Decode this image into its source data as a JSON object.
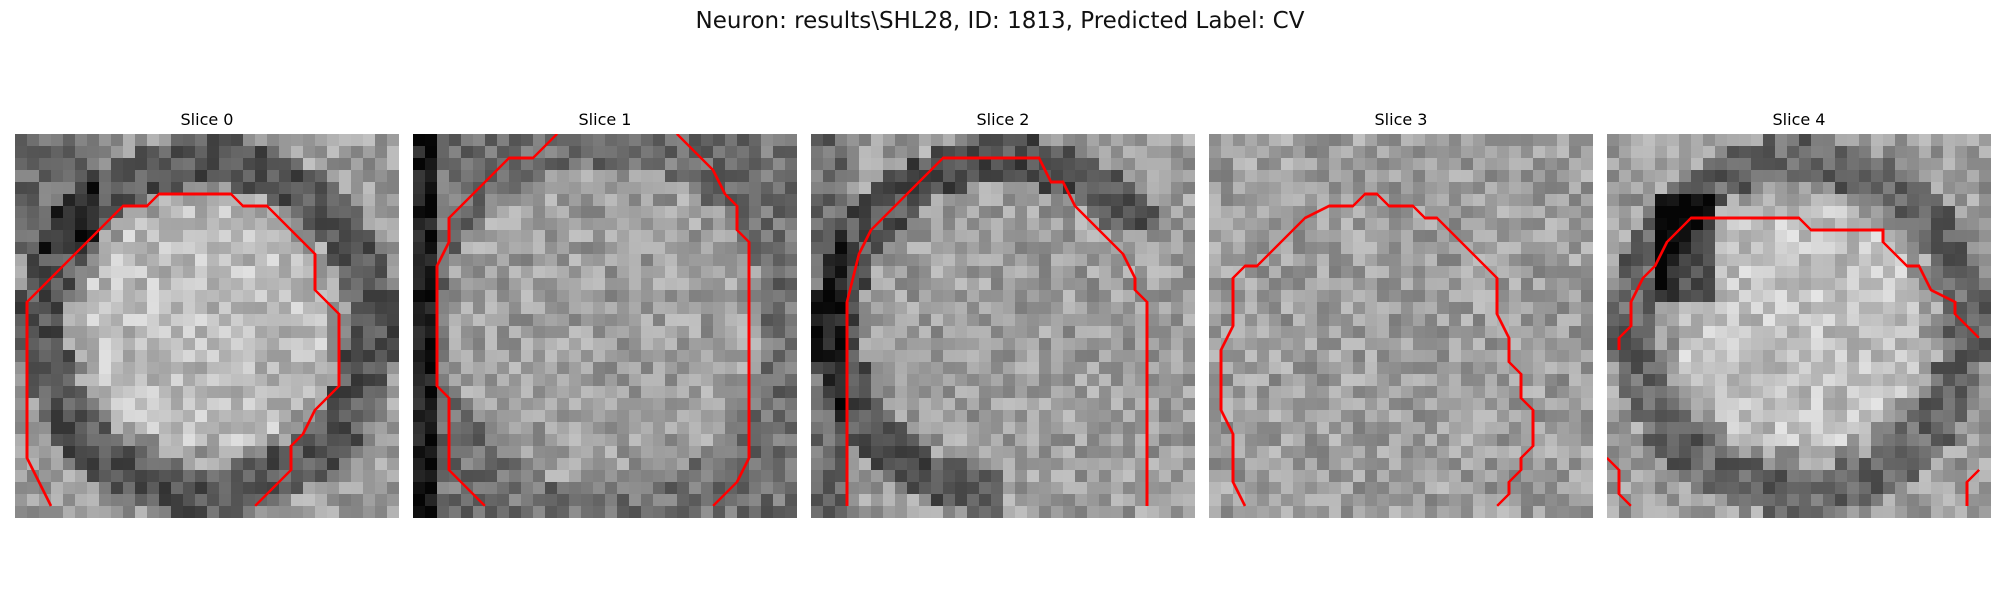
{
  "title": "Neuron: results\\SHL28, ID: 1813, Predicted Label: CV",
  "contour_color": "#ff0000",
  "panels": [
    {
      "label": "Slice 0",
      "dark_ring": "oval",
      "seed": 3
    },
    {
      "label": "Slice 1",
      "dark_ring": "edges",
      "seed": 11
    },
    {
      "label": "Slice 2",
      "dark_ring": "left-top",
      "seed": 19
    },
    {
      "label": "Slice 3",
      "dark_ring": "none",
      "seed": 27
    },
    {
      "label": "Slice 4",
      "dark_ring": "left-top-strong",
      "seed": 35
    }
  ]
}
